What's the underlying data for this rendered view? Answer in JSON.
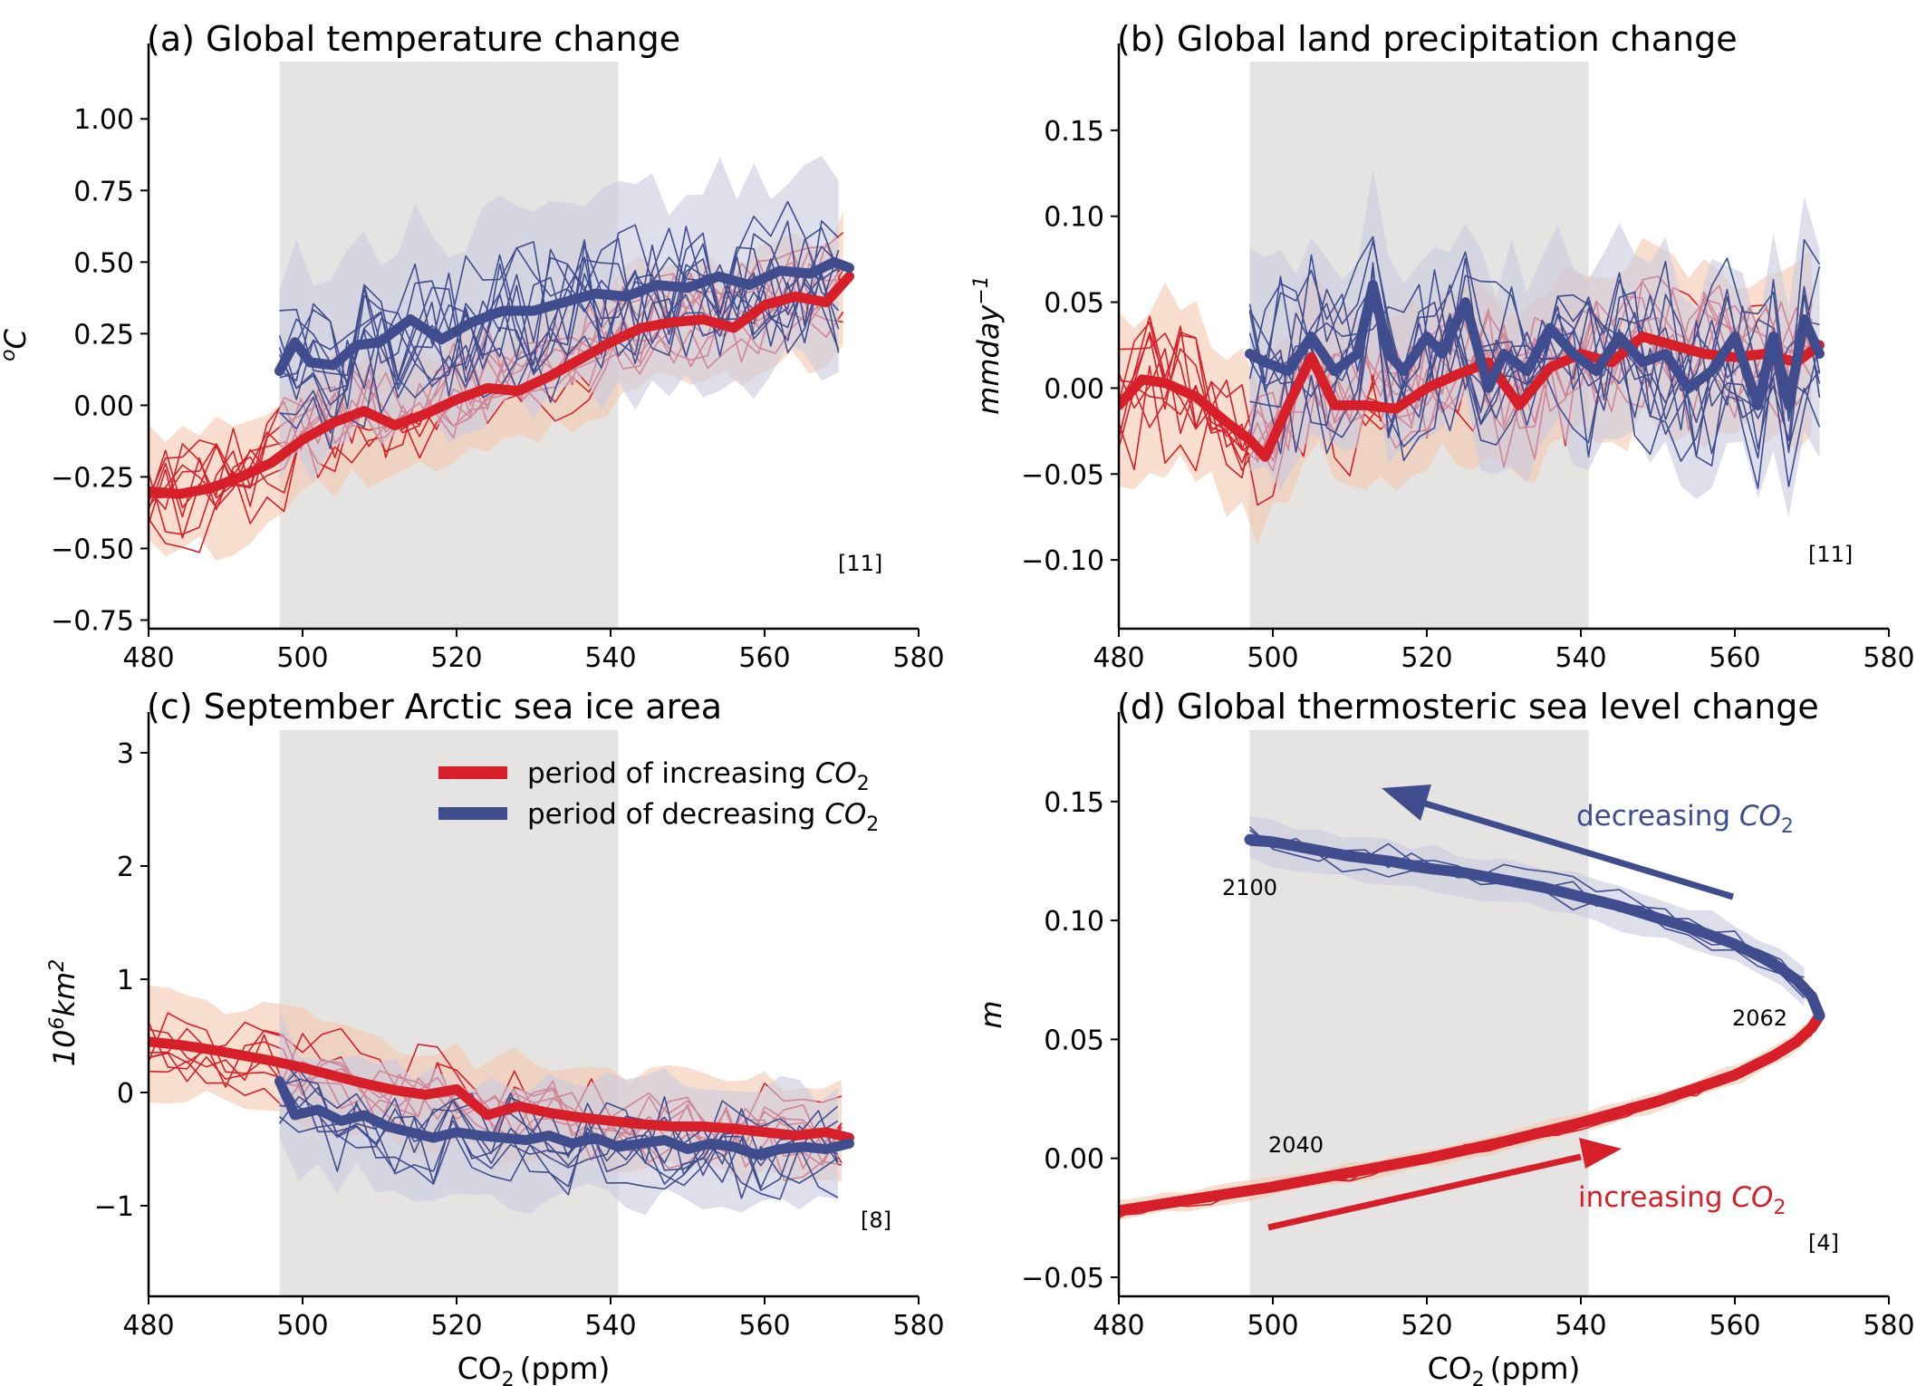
{
  "colors": {
    "increasing": "#d71f2a",
    "decreasing": "#3f4d8f",
    "increasing_fill": "#f4c8ad",
    "decreasing_fill": "#c9c9e0",
    "shade": "#e6e4e3"
  },
  "legend": {
    "increasing": {
      "text": "period of increasing ",
      "sym": "CO",
      "sub": "2"
    },
    "decreasing": {
      "text": "period of decreasing ",
      "sym": "CO",
      "sub": "2"
    }
  },
  "xaxis_label": {
    "text": "CO",
    "sub": "2",
    "unit": "(ppm)"
  },
  "chart_data": [
    {
      "panel": "a",
      "type": "line",
      "title": "(a) Global temperature change",
      "ylabel": {
        "base": "C",
        "sup": "o"
      },
      "xlim": [
        480,
        580
      ],
      "ylim": [
        -0.78,
        1.2
      ],
      "xticks": [
        480,
        500,
        520,
        540,
        560,
        580
      ],
      "yticks": [
        -0.75,
        -0.5,
        -0.25,
        0.0,
        0.25,
        0.5,
        0.75,
        1.0
      ],
      "yticklabels": [
        "−0.75",
        "−0.50",
        "−0.25",
        "0.00",
        "0.25",
        "0.50",
        "0.75",
        "1.00"
      ],
      "shaded_region": [
        497,
        541
      ],
      "count_label": "[11]",
      "series": [
        {
          "kind": "increasing_mean",
          "x": [
            480,
            484,
            488,
            492,
            496,
            500,
            504,
            508,
            512,
            516,
            520,
            524,
            528,
            532,
            536,
            540,
            544,
            548,
            552,
            556,
            560,
            564,
            568,
            571
          ],
          "y": [
            -0.3,
            -0.31,
            -0.29,
            -0.25,
            -0.2,
            -0.12,
            -0.06,
            -0.02,
            -0.07,
            -0.03,
            0.02,
            0.06,
            0.05,
            0.1,
            0.16,
            0.22,
            0.27,
            0.29,
            0.3,
            0.27,
            0.35,
            0.38,
            0.36,
            0.45
          ]
        },
        {
          "kind": "decreasing_mean",
          "x": [
            497,
            499,
            501,
            504,
            507,
            510,
            514,
            518,
            522,
            526,
            530,
            534,
            538,
            542,
            546,
            550,
            554,
            558,
            562,
            566,
            569,
            571
          ],
          "y": [
            0.12,
            0.22,
            0.15,
            0.14,
            0.21,
            0.22,
            0.3,
            0.23,
            0.29,
            0.33,
            0.33,
            0.36,
            0.39,
            0.38,
            0.42,
            0.41,
            0.45,
            0.42,
            0.47,
            0.46,
            0.5,
            0.48
          ]
        }
      ]
    },
    {
      "panel": "b",
      "type": "line",
      "title": "(b) Global land precipitation change",
      "ylabel": {
        "base": "mmday",
        "sup": "−1"
      },
      "xlim": [
        480,
        580
      ],
      "ylim": [
        -0.14,
        0.19
      ],
      "xticks": [
        480,
        500,
        520,
        540,
        560,
        580
      ],
      "yticks": [
        -0.1,
        -0.05,
        0.0,
        0.05,
        0.1,
        0.15
      ],
      "yticklabels": [
        "−0.10",
        "−0.05",
        "0.00",
        "0.05",
        "0.10",
        "0.15"
      ],
      "shaded_region": [
        497,
        541
      ],
      "count_label": "[11]",
      "series": [
        {
          "kind": "increasing_mean",
          "x": [
            480,
            483,
            486,
            490,
            494,
            497,
            499,
            502,
            505,
            508,
            512,
            516,
            520,
            524,
            528,
            532,
            536,
            540,
            544,
            548,
            552,
            556,
            560,
            564,
            568,
            571
          ],
          "y": [
            -0.01,
            0.005,
            0.003,
            -0.005,
            -0.02,
            -0.03,
            -0.04,
            -0.01,
            0.018,
            -0.01,
            -0.01,
            -0.012,
            0.0,
            0.008,
            0.015,
            -0.01,
            0.012,
            0.02,
            0.015,
            0.03,
            0.025,
            0.02,
            0.018,
            0.02,
            0.015,
            0.025
          ]
        },
        {
          "kind": "decreasing_mean",
          "x": [
            497,
            499,
            502,
            505,
            508,
            511,
            513,
            515,
            517,
            520,
            522,
            525,
            528,
            530,
            533,
            536,
            539,
            542,
            545,
            548,
            551,
            554,
            557,
            560,
            563,
            565,
            567,
            569,
            571
          ],
          "y": [
            0.02,
            0.015,
            0.01,
            0.03,
            0.01,
            0.02,
            0.06,
            0.02,
            0.01,
            0.03,
            0.02,
            0.05,
            0.0,
            0.02,
            0.01,
            0.035,
            0.02,
            0.01,
            0.03,
            0.015,
            0.02,
            0.0,
            0.01,
            0.03,
            -0.01,
            0.03,
            -0.01,
            0.04,
            0.02
          ]
        }
      ]
    },
    {
      "panel": "c",
      "type": "line",
      "title": "(c) September Arctic sea ice area",
      "ylabel": {
        "base": "10",
        "sup": "6",
        "rest": "km",
        "sup2": "2"
      },
      "xlim": [
        480,
        580
      ],
      "ylim": [
        -1.8,
        3.2
      ],
      "xticks": [
        480,
        500,
        520,
        540,
        560,
        580
      ],
      "yticks": [
        -1,
        0,
        1,
        2,
        3
      ],
      "yticklabels": [
        "−1",
        "0",
        "1",
        "2",
        "3"
      ],
      "shaded_region": [
        497,
        541
      ],
      "count_label": "[8]",
      "series": [
        {
          "kind": "increasing_mean",
          "x": [
            480,
            484,
            488,
            492,
            496,
            500,
            504,
            508,
            512,
            516,
            520,
            524,
            528,
            532,
            536,
            540,
            544,
            548,
            552,
            556,
            560,
            564,
            568,
            571
          ],
          "y": [
            0.45,
            0.42,
            0.38,
            0.33,
            0.28,
            0.22,
            0.15,
            0.08,
            0.02,
            -0.02,
            0.03,
            -0.2,
            -0.12,
            -0.18,
            -0.22,
            -0.25,
            -0.28,
            -0.3,
            -0.3,
            -0.32,
            -0.35,
            -0.38,
            -0.35,
            -0.4
          ]
        },
        {
          "kind": "decreasing_mean",
          "x": [
            497,
            499,
            502,
            505,
            508,
            511,
            514,
            517,
            520,
            523,
            526,
            529,
            532,
            535,
            538,
            541,
            544,
            547,
            550,
            553,
            556,
            559,
            562,
            565,
            568,
            571
          ],
          "y": [
            0.1,
            -0.2,
            -0.15,
            -0.25,
            -0.2,
            -0.3,
            -0.35,
            -0.4,
            -0.35,
            -0.38,
            -0.4,
            -0.42,
            -0.38,
            -0.45,
            -0.4,
            -0.48,
            -0.45,
            -0.42,
            -0.5,
            -0.45,
            -0.48,
            -0.55,
            -0.5,
            -0.48,
            -0.5,
            -0.45
          ]
        }
      ]
    },
    {
      "panel": "d",
      "type": "line",
      "title": "(d) Global thermosteric sea level change",
      "ylabel": {
        "base": "m"
      },
      "xlim": [
        480,
        580
      ],
      "ylim": [
        -0.058,
        0.18
      ],
      "xticks": [
        480,
        500,
        520,
        540,
        560,
        580
      ],
      "yticks": [
        -0.05,
        0.0,
        0.05,
        0.1,
        0.15
      ],
      "yticklabels": [
        "−0.05",
        "0.00",
        "0.05",
        "0.10",
        "0.15"
      ],
      "shaded_region": [
        497,
        541
      ],
      "count_label": "[4]",
      "annotations": {
        "decreasing": {
          "text": "decreasing ",
          "sym": "CO",
          "sub": "2"
        },
        "increasing": {
          "text": "increasing ",
          "sym": "CO",
          "sub": "2"
        },
        "years": [
          "2100",
          "2062",
          "2040"
        ]
      },
      "series": [
        {
          "kind": "increasing_mean",
          "x": [
            480,
            490,
            500,
            510,
            520,
            530,
            540,
            550,
            560,
            565,
            568,
            570,
            571
          ],
          "y": [
            -0.022,
            -0.017,
            -0.012,
            -0.006,
            0.0,
            0.007,
            0.015,
            0.024,
            0.035,
            0.043,
            0.049,
            0.055,
            0.06
          ]
        },
        {
          "kind": "decreasing_mean",
          "x": [
            571,
            570,
            568,
            565,
            560,
            555,
            550,
            545,
            540,
            535,
            530,
            525,
            520,
            515,
            510,
            505,
            500,
            497
          ],
          "y": [
            0.06,
            0.068,
            0.075,
            0.082,
            0.09,
            0.096,
            0.101,
            0.106,
            0.11,
            0.114,
            0.117,
            0.12,
            0.122,
            0.125,
            0.127,
            0.13,
            0.133,
            0.134
          ]
        }
      ]
    }
  ]
}
